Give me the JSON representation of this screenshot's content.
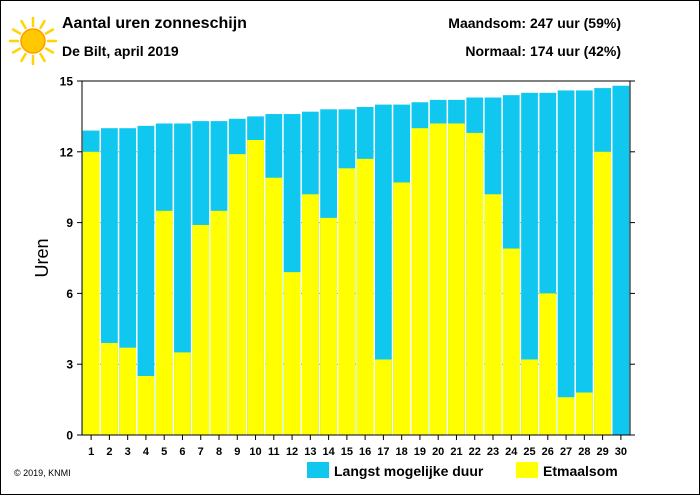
{
  "header": {
    "title": "Aantal uren zonneschijn",
    "subtitle": "De Bilt, april 2019",
    "month_sum": "Maandsom: 247 uur (59%)",
    "normal": "Normaal: 174 uur (42%)",
    "icon": "sun-icon"
  },
  "footer": {
    "copyright": "© 2019, KNMI"
  },
  "colors": {
    "max_duration": "#10c8ef",
    "daily_sum": "#ffff00",
    "sun_core": "#ffc800",
    "sun_rays": "#ffd400"
  },
  "chart_data": {
    "type": "bar",
    "ylabel": "Uren",
    "xlabel": "",
    "ylim": [
      0,
      15
    ],
    "yticks": [
      0,
      3,
      6,
      9,
      12,
      15
    ],
    "legend_position": "bottom-right",
    "categories": [
      "1",
      "2",
      "3",
      "4",
      "5",
      "6",
      "7",
      "8",
      "9",
      "10",
      "11",
      "12",
      "13",
      "14",
      "15",
      "16",
      "17",
      "18",
      "19",
      "20",
      "21",
      "22",
      "23",
      "24",
      "25",
      "26",
      "27",
      "28",
      "29",
      "30"
    ],
    "series": [
      {
        "name": "Langst mogelijke duur",
        "values": [
          12.9,
          13.0,
          13.0,
          13.1,
          13.2,
          13.2,
          13.3,
          13.3,
          13.4,
          13.5,
          13.6,
          13.6,
          13.7,
          13.8,
          13.8,
          13.9,
          14.0,
          14.0,
          14.1,
          14.2,
          14.2,
          14.3,
          14.3,
          14.4,
          14.5,
          14.5,
          14.6,
          14.6,
          14.7,
          14.8
        ]
      },
      {
        "name": "Etmaalsom",
        "values": [
          12.0,
          3.9,
          3.7,
          2.5,
          9.5,
          3.5,
          8.9,
          9.5,
          11.9,
          12.5,
          10.9,
          6.9,
          10.2,
          9.2,
          11.3,
          11.7,
          3.2,
          10.7,
          13.0,
          13.2,
          13.2,
          12.8,
          10.2,
          7.9,
          3.2,
          6.0,
          1.6,
          1.8,
          12.0,
          0.0
        ]
      }
    ]
  }
}
